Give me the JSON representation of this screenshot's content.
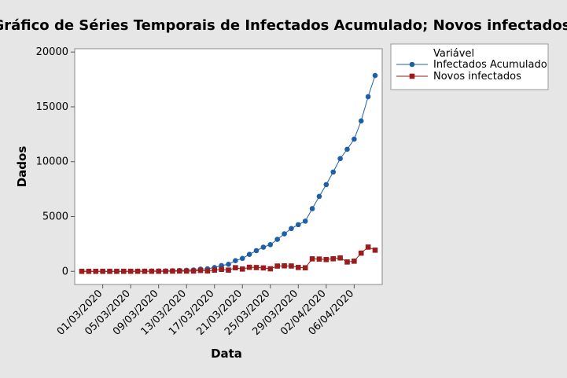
{
  "chart_data": {
    "type": "line",
    "title": "Gráfico de Séries Temporais de Infectados Acumulado; Novos infectados",
    "xlabel": "Data",
    "ylabel": "Dados",
    "ylim": [
      -1200,
      20300
    ],
    "y_ticks": [
      0,
      5000,
      10000,
      15000,
      20000
    ],
    "x_tick_labels": [
      "01/03/2020",
      "05/03/2020",
      "09/03/2020",
      "13/03/2020",
      "17/03/2020",
      "21/03/2020",
      "25/03/2020",
      "29/03/2020",
      "02/04/2020",
      "06/04/2020"
    ],
    "x_dates": [
      "27/02/2020",
      "28/02/2020",
      "29/02/2020",
      "01/03/2020",
      "02/03/2020",
      "03/03/2020",
      "04/03/2020",
      "05/03/2020",
      "06/03/2020",
      "07/03/2020",
      "08/03/2020",
      "09/03/2020",
      "10/03/2020",
      "11/03/2020",
      "12/03/2020",
      "13/03/2020",
      "14/03/2020",
      "15/03/2020",
      "16/03/2020",
      "17/03/2020",
      "18/03/2020",
      "19/03/2020",
      "20/03/2020",
      "21/03/2020",
      "22/03/2020",
      "23/03/2020",
      "24/03/2020",
      "25/03/2020",
      "26/03/2020",
      "27/03/2020",
      "28/03/2020",
      "29/03/2020",
      "30/03/2020",
      "31/03/2020",
      "01/04/2020",
      "02/04/2020",
      "03/04/2020",
      "04/04/2020",
      "05/04/2020",
      "06/04/2020",
      "07/04/2020",
      "08/04/2020",
      "09/04/2020"
    ],
    "legend": {
      "title": "Variável",
      "placement": "right"
    },
    "grid": false,
    "series": [
      {
        "name": "Infectados Acumulado",
        "color": "#1f5fa8",
        "marker": "circle",
        "values": [
          1,
          1,
          1,
          2,
          2,
          2,
          3,
          8,
          13,
          19,
          25,
          30,
          34,
          52,
          77,
          98,
          121,
          200,
          234,
          346,
          529,
          640,
          970,
          1178,
          1546,
          1891,
          2201,
          2433,
          2915,
          3417,
          3904,
          4256,
          4579,
          5717,
          6836,
          7910,
          9056,
          10278,
          11130,
          12056,
          13717,
          15927,
          17857
        ]
      },
      {
        "name": "Novos infectados",
        "color": "#9b1c1c",
        "marker": "square",
        "values": [
          1,
          0,
          0,
          1,
          0,
          0,
          1,
          5,
          5,
          6,
          6,
          5,
          4,
          18,
          25,
          21,
          23,
          79,
          34,
          112,
          183,
          111,
          330,
          208,
          368,
          345,
          310,
          232,
          482,
          502,
          487,
          352,
          323,
          1138,
          1119,
          1074,
          1146,
          1222,
          852,
          926,
          1661,
          2210,
          1930
        ]
      }
    ]
  }
}
